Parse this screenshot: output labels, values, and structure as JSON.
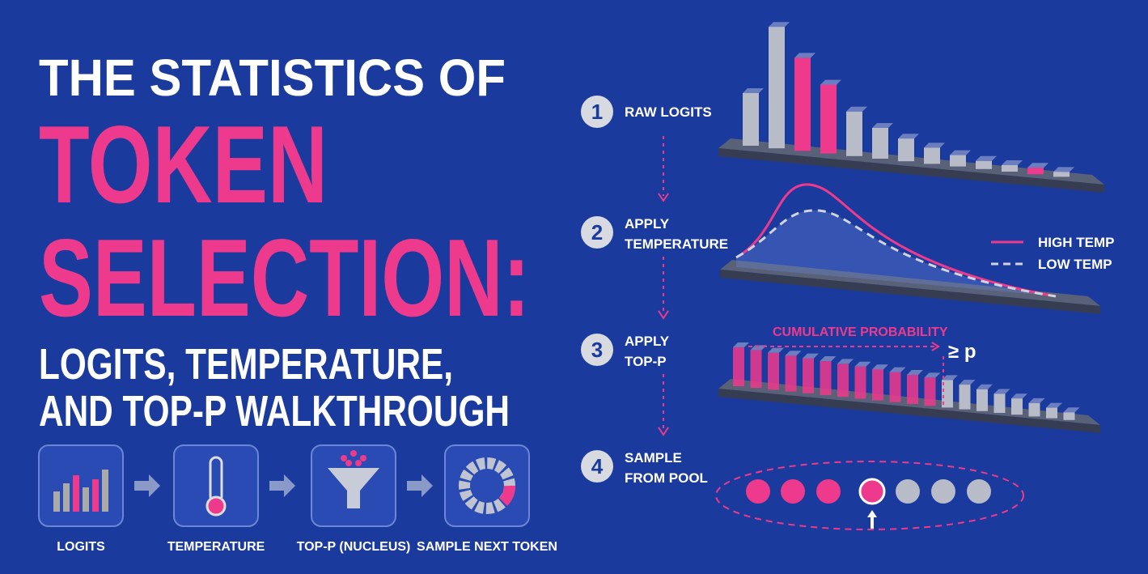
{
  "title": {
    "line1": "THE STATISTICS OF",
    "line2": "TOKEN",
    "line3": "SELECTION:",
    "line4": "LOGITS, TEMPERATURE,",
    "line5": "AND TOP-P WALKTHROUGH"
  },
  "pipeline": [
    {
      "label": "LOGITS"
    },
    {
      "label": "TEMPERATURE"
    },
    {
      "label": "TOP-P (NUCLEUS)"
    },
    {
      "label": "SAMPLE NEXT TOKEN"
    }
  ],
  "steps": [
    {
      "number": "1",
      "label": [
        "RAW LOGITS"
      ]
    },
    {
      "number": "2",
      "label": [
        "APPLY",
        "TEMPERATURE"
      ]
    },
    {
      "number": "3",
      "label": [
        "APPLY",
        "TOP-P"
      ]
    },
    {
      "number": "4",
      "label": [
        "SAMPLE",
        "FROM POOL"
      ]
    }
  ],
  "legend": [
    "HIGH TEMP",
    "LOW TEMP"
  ],
  "annotations": {
    "cumulative": "CUMULATIVE PROBABILITY",
    "threshold": "≥ p"
  }
}
